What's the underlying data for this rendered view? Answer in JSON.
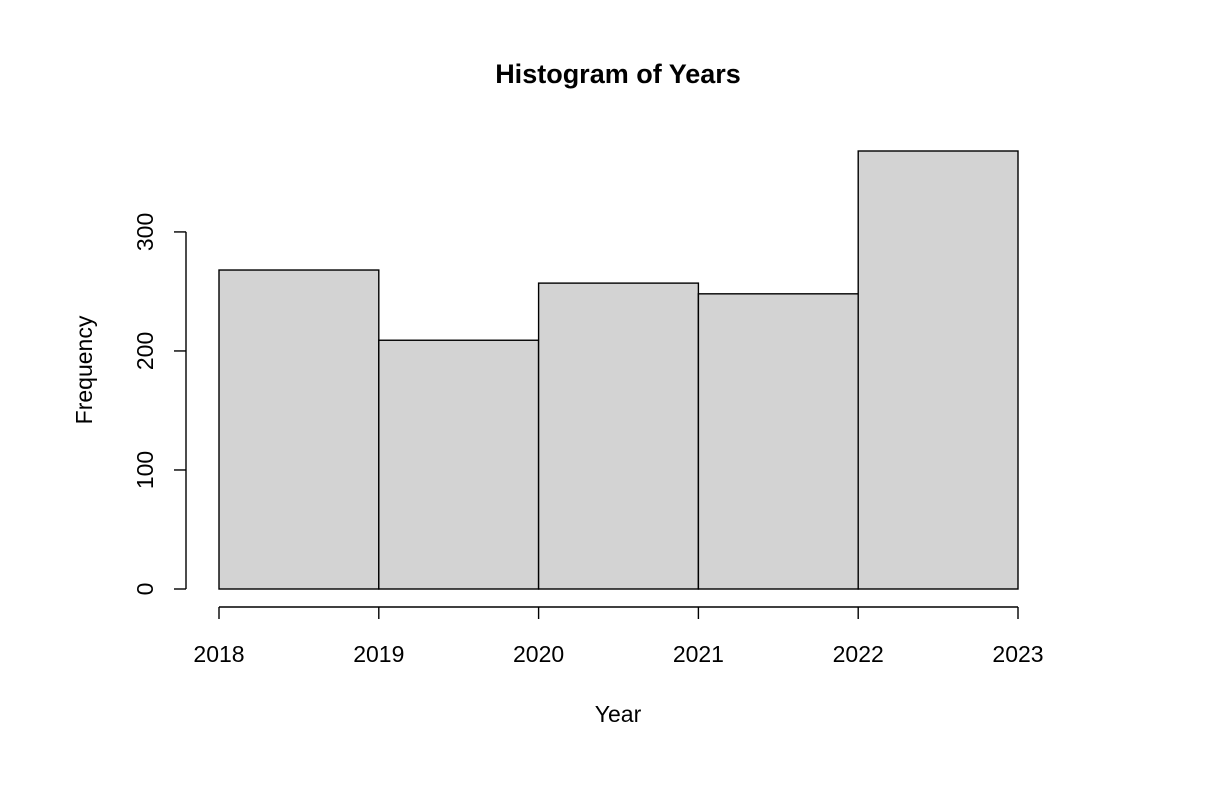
{
  "chart_data": {
    "type": "bar",
    "title": "Histogram of Years",
    "xlabel": "Year",
    "ylabel": "Frequency",
    "bins": [
      {
        "start": 2018,
        "end": 2019,
        "value": 268
      },
      {
        "start": 2019,
        "end": 2020,
        "value": 209
      },
      {
        "start": 2020,
        "end": 2021,
        "value": 257
      },
      {
        "start": 2021,
        "end": 2022,
        "value": 248
      },
      {
        "start": 2022,
        "end": 2023,
        "value": 368
      }
    ],
    "x_ticks": [
      "2018",
      "2019",
      "2020",
      "2021",
      "2022",
      "2023"
    ],
    "y_ticks": [
      "0",
      "100",
      "200",
      "300"
    ],
    "xlim": [
      2018,
      2023
    ],
    "ylim": [
      0,
      368
    ],
    "grid": false,
    "bar_fill": "#d3d3d3",
    "bar_stroke": "#000000"
  }
}
